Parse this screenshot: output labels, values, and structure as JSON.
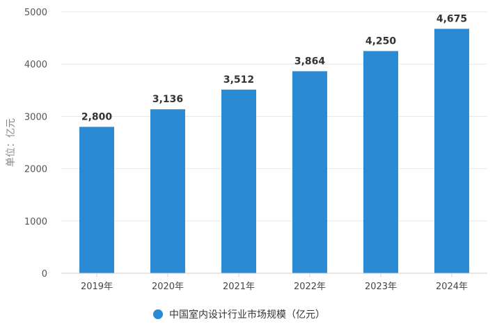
{
  "chart_data": {
    "type": "bar",
    "categories": [
      "2019年",
      "2020年",
      "2021年",
      "2022年",
      "2023年",
      "2024年"
    ],
    "series": [
      {
        "name": "中国室内设计行业市场规模（亿元）",
        "values": [
          2800,
          3136,
          3512,
          3864,
          4250,
          4675
        ]
      }
    ],
    "data_labels": [
      "2,800",
      "3,136",
      "3,512",
      "3,864",
      "4,250",
      "4,675"
    ],
    "ylabel": "单位：亿元",
    "xlabel": "",
    "ylim": [
      0,
      5000
    ],
    "yticks": [
      0,
      1000,
      2000,
      3000,
      4000,
      5000
    ],
    "grid": true,
    "legend_position": "bottom-center",
    "colors": {
      "bar": "#2a8ad4",
      "grid": "#e6e6e6",
      "axis": "#cccccc"
    }
  }
}
